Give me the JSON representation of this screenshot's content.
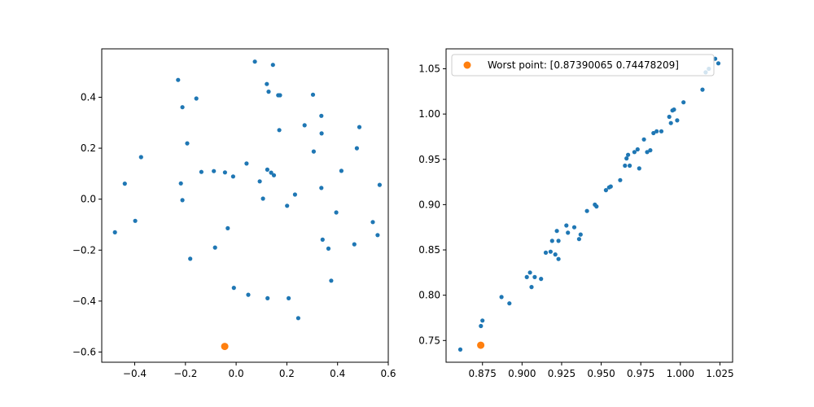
{
  "colors": {
    "series": "#1f77b4",
    "worst": "#ff7f0e",
    "axes": "#000000",
    "background": "#ffffff",
    "legend_border": "#cccccc"
  },
  "chart_data": [
    {
      "type": "scatter",
      "title": "",
      "xlabel": "",
      "ylabel": "",
      "xlim": [
        -0.53,
        0.6
      ],
      "ylim": [
        -0.64,
        0.59
      ],
      "xticks": [
        -0.4,
        -0.2,
        0.0,
        0.2,
        0.4,
        0.6
      ],
      "xtick_labels": [
        "−0.4",
        "−0.2",
        "0.0",
        "0.2",
        "0.4",
        "0.6"
      ],
      "yticks": [
        -0.6,
        -0.4,
        -0.2,
        0.0,
        0.2,
        0.4
      ],
      "ytick_labels": [
        "−0.6",
        "−0.4",
        "−0.2",
        "0.0",
        "0.2",
        "0.4"
      ],
      "grid": false,
      "series": [
        {
          "points": [
            [
              0.074,
              0.54
            ],
            [
              0.145,
              0.527
            ],
            [
              -0.229,
              0.468
            ],
            [
              0.121,
              0.452
            ],
            [
              0.128,
              0.422
            ],
            [
              0.166,
              0.408
            ],
            [
              0.173,
              0.408
            ],
            [
              0.303,
              0.41
            ],
            [
              -0.157,
              0.395
            ],
            [
              -0.212,
              0.361
            ],
            [
              0.336,
              0.327
            ],
            [
              -0.375,
              0.165
            ],
            [
              0.27,
              0.29
            ],
            [
              0.486,
              0.283
            ],
            [
              0.17,
              0.271
            ],
            [
              0.337,
              0.258
            ],
            [
              -0.193,
              0.219
            ],
            [
              0.476,
              0.2
            ],
            [
              0.306,
              0.187
            ],
            [
              0.041,
              0.14
            ],
            [
              0.123,
              0.116
            ],
            [
              0.415,
              0.111
            ],
            [
              -0.137,
              0.107
            ],
            [
              -0.088,
              0.11
            ],
            [
              -0.044,
              0.105
            ],
            [
              0.138,
              0.104
            ],
            [
              0.149,
              0.094
            ],
            [
              -0.012,
              0.089
            ],
            [
              0.093,
              0.07
            ],
            [
              -0.218,
              0.062
            ],
            [
              -0.439,
              0.061
            ],
            [
              0.566,
              0.056
            ],
            [
              0.336,
              0.044
            ],
            [
              0.232,
              0.018
            ],
            [
              0.106,
              0.002
            ],
            [
              -0.212,
              -0.004
            ],
            [
              0.201,
              -0.026
            ],
            [
              0.395,
              -0.052
            ],
            [
              -0.398,
              -0.085
            ],
            [
              0.539,
              -0.09
            ],
            [
              -0.478,
              -0.13
            ],
            [
              -0.033,
              -0.114
            ],
            [
              0.558,
              -0.141
            ],
            [
              0.341,
              -0.159
            ],
            [
              0.466,
              -0.177
            ],
            [
              -0.083,
              -0.19
            ],
            [
              0.364,
              -0.194
            ],
            [
              -0.181,
              -0.234
            ],
            [
              0.375,
              -0.32
            ],
            [
              -0.009,
              -0.348
            ],
            [
              0.048,
              -0.375
            ],
            [
              0.124,
              -0.389
            ],
            [
              0.207,
              -0.389
            ],
            [
              0.245,
              -0.467
            ]
          ]
        }
      ],
      "worst_point": [
        -0.045,
        -0.578
      ]
    },
    {
      "type": "scatter",
      "title": "",
      "xlabel": "",
      "ylabel": "",
      "xlim": [
        0.852,
        1.033
      ],
      "ylim": [
        0.726,
        1.072
      ],
      "xticks": [
        0.875,
        0.9,
        0.925,
        0.95,
        0.975,
        1.0,
        1.025
      ],
      "xtick_labels": [
        "0.875",
        "0.900",
        "0.925",
        "0.950",
        "0.975",
        "1.000",
        "1.025"
      ],
      "yticks": [
        0.75,
        0.8,
        0.85,
        0.9,
        0.95,
        1.0,
        1.05
      ],
      "ytick_labels": [
        "0.75",
        "0.80",
        "0.85",
        "0.90",
        "0.95",
        "1.00",
        "1.05"
      ],
      "grid": false,
      "legend": {
        "position": "top-right",
        "entries": [
          "Worst point: [0.87390065 0.74478209]"
        ]
      },
      "series": [
        {
          "points": [
            [
              0.861,
              0.74
            ],
            [
              0.874,
              0.766
            ],
            [
              0.875,
              0.772
            ],
            [
              0.887,
              0.798
            ],
            [
              0.892,
              0.791
            ],
            [
              0.903,
              0.82
            ],
            [
              0.905,
              0.825
            ],
            [
              0.906,
              0.809
            ],
            [
              0.908,
              0.82
            ],
            [
              0.912,
              0.818
            ],
            [
              0.915,
              0.847
            ],
            [
              0.918,
              0.848
            ],
            [
              0.919,
              0.86
            ],
            [
              0.921,
              0.845
            ],
            [
              0.922,
              0.871
            ],
            [
              0.923,
              0.84
            ],
            [
              0.923,
              0.86
            ],
            [
              0.928,
              0.877
            ],
            [
              0.929,
              0.869
            ],
            [
              0.933,
              0.875
            ],
            [
              0.936,
              0.862
            ],
            [
              0.937,
              0.867
            ],
            [
              0.941,
              0.893
            ],
            [
              0.946,
              0.9
            ],
            [
              0.947,
              0.898
            ],
            [
              0.953,
              0.916
            ],
            [
              0.955,
              0.919
            ],
            [
              0.956,
              0.92
            ],
            [
              0.962,
              0.927
            ],
            [
              0.965,
              0.943
            ],
            [
              0.966,
              0.951
            ],
            [
              0.967,
              0.955
            ],
            [
              0.968,
              0.943
            ],
            [
              0.971,
              0.958
            ],
            [
              0.973,
              0.961
            ],
            [
              0.974,
              0.94
            ],
            [
              0.977,
              0.972
            ],
            [
              0.979,
              0.958
            ],
            [
              0.981,
              0.96
            ],
            [
              0.983,
              0.979
            ],
            [
              0.985,
              0.981
            ],
            [
              0.988,
              0.981
            ],
            [
              0.993,
              0.997
            ],
            [
              0.994,
              0.99
            ],
            [
              0.995,
              1.004
            ],
            [
              0.996,
              1.005
            ],
            [
              0.998,
              0.993
            ],
            [
              1.002,
              1.013
            ],
            [
              1.014,
              1.027
            ],
            [
              1.016,
              1.046
            ],
            [
              1.018,
              1.05
            ],
            [
              1.022,
              1.061
            ],
            [
              1.024,
              1.056
            ]
          ]
        }
      ],
      "worst_point": [
        0.8739,
        0.7448
      ]
    }
  ]
}
